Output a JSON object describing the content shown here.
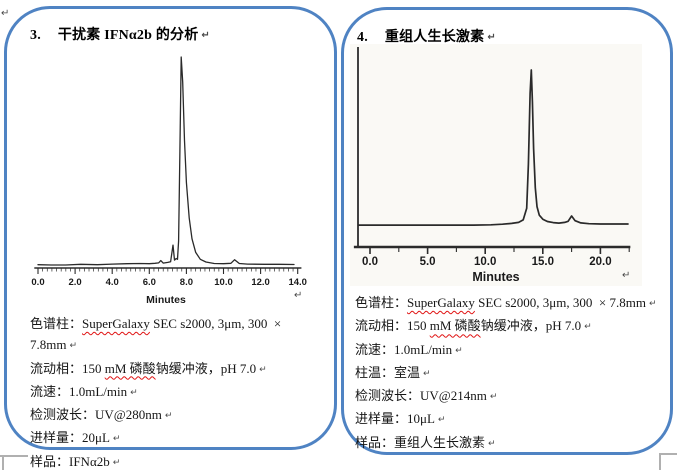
{
  "page": {
    "paragraph_mark": "↵"
  },
  "panels": [
    {
      "number": "3.",
      "title": "干扰素 IFNα2b 的分析",
      "specs": [
        {
          "segments": [
            {
              "t": "色谱柱："
            },
            {
              "t": "SuperGalaxy",
              "sq": true
            },
            {
              "t": " SEC s2000, 3μm, 300  × 7.8mm"
            }
          ]
        },
        {
          "segments": [
            {
              "t": "流动相：150 "
            },
            {
              "t": "mM 磷酸",
              "sq": true
            },
            {
              "t": "钠缓冲液，pH 7.0"
            }
          ]
        },
        {
          "segments": [
            {
              "t": "流速：1.0mL/min"
            }
          ]
        },
        {
          "segments": [
            {
              "t": "检测波长：UV@280nm"
            }
          ]
        },
        {
          "segments": [
            {
              "t": "进样量：20μL"
            }
          ]
        },
        {
          "segments": [
            {
              "t": "样品：IFNα2b"
            }
          ]
        }
      ]
    },
    {
      "number": "4.",
      "title": "重组人生长激素",
      "specs": [
        {
          "segments": [
            {
              "t": "色谱柱："
            },
            {
              "t": "SuperGalaxy",
              "sq": true
            },
            {
              "t": " SEC s2000, 3μm, 300  × 7.8mm"
            }
          ]
        },
        {
          "segments": [
            {
              "t": "流动相：150 "
            },
            {
              "t": "mM 磷酸",
              "sq": true
            },
            {
              "t": "钠缓冲液，pH 7.0"
            }
          ]
        },
        {
          "segments": [
            {
              "t": "流速：1.0mL/min"
            }
          ]
        },
        {
          "segments": [
            {
              "t": "柱温：室温"
            }
          ]
        },
        {
          "segments": [
            {
              "t": "检测波长：UV@214nm"
            }
          ]
        },
        {
          "segments": [
            {
              "t": "进样量：10μL"
            }
          ]
        },
        {
          "segments": [
            {
              "t": "样品：重组人生长激素"
            }
          ]
        }
      ]
    }
  ],
  "chart_data": [
    {
      "type": "line",
      "title": "",
      "xlabel": "Minutes",
      "ylabel": "",
      "xlim": [
        0,
        14
      ],
      "ylim": [
        0,
        100
      ],
      "grid": false,
      "legend": false,
      "x_tick_values": [
        0,
        2,
        4,
        6,
        8,
        10,
        12,
        14
      ],
      "x_tick_labels": [
        "0.0",
        "2.0",
        "4.0",
        "6.0",
        "8.0",
        "10.0",
        "12.0",
        "14.0"
      ],
      "x_minor_step": 0.25,
      "peaks": [
        {
          "x": 6.6,
          "rel_height": 2.5
        },
        {
          "x": 7.3,
          "rel_height": 10
        },
        {
          "x": 7.7,
          "rel_height": 100
        },
        {
          "x": 10.6,
          "rel_height": 3
        }
      ],
      "series": [
        {
          "name": "UV@280nm signal",
          "points": [
            [
              0,
              0.6
            ],
            [
              0.7,
              0.5
            ],
            [
              1.5,
              0.5
            ],
            [
              2.3,
              0.8
            ],
            [
              3.2,
              0.6
            ],
            [
              4.0,
              0.9
            ],
            [
              4.8,
              1.1
            ],
            [
              5.5,
              1.2
            ],
            [
              6.0,
              1.1
            ],
            [
              6.3,
              1.3
            ],
            [
              6.5,
              1.5
            ],
            [
              6.62,
              2.6
            ],
            [
              6.75,
              1.4
            ],
            [
              7.0,
              1.7
            ],
            [
              7.15,
              2.0
            ],
            [
              7.28,
              10
            ],
            [
              7.36,
              2.8
            ],
            [
              7.45,
              3.6
            ],
            [
              7.52,
              3.2
            ],
            [
              7.58,
              12
            ],
            [
              7.65,
              55
            ],
            [
              7.72,
              100
            ],
            [
              7.8,
              88
            ],
            [
              7.9,
              60
            ],
            [
              8.0,
              40
            ],
            [
              8.15,
              23
            ],
            [
              8.3,
              13
            ],
            [
              8.5,
              6.5
            ],
            [
              8.75,
              3.2
            ],
            [
              9.05,
              1.9
            ],
            [
              9.5,
              1.2
            ],
            [
              10.0,
              1.1
            ],
            [
              10.4,
              1.3
            ],
            [
              10.6,
              3.0
            ],
            [
              10.85,
              1.2
            ],
            [
              11.3,
              0.9
            ],
            [
              12.2,
              0.8
            ],
            [
              13.0,
              0.8
            ],
            [
              13.8,
              0.7
            ]
          ]
        }
      ]
    },
    {
      "type": "line",
      "title": "",
      "xlabel": "Minutes",
      "ylabel": "",
      "xlim": [
        -1.5,
        22.5
      ],
      "ylim": [
        0,
        100
      ],
      "grid": false,
      "legend": false,
      "x_tick_values": [
        0,
        5,
        10,
        15,
        20
      ],
      "x_tick_labels": [
        "0.0",
        "5.0",
        "10.0",
        "15.0",
        "20.0"
      ],
      "x_minor_step": 2.5,
      "peaks": [
        {
          "x": 14.0,
          "rel_height": 100
        },
        {
          "x": 17.5,
          "rel_height": 7
        }
      ],
      "series": [
        {
          "name": "UV@214nm signal",
          "points": [
            [
              -1.0,
              1.2
            ],
            [
              0,
              1.2
            ],
            [
              3,
              1.2
            ],
            [
              6,
              1.2
            ],
            [
              9,
              1.2
            ],
            [
              10.5,
              1.4
            ],
            [
              11.5,
              1.8
            ],
            [
              12.3,
              2.3
            ],
            [
              12.9,
              2.9
            ],
            [
              13.3,
              4.5
            ],
            [
              13.6,
              12
            ],
            [
              13.75,
              40
            ],
            [
              13.9,
              85
            ],
            [
              14.0,
              100
            ],
            [
              14.1,
              80
            ],
            [
              14.2,
              50
            ],
            [
              14.35,
              25
            ],
            [
              14.5,
              13
            ],
            [
              14.7,
              7.5
            ],
            [
              15.0,
              5
            ],
            [
              15.4,
              3.5
            ],
            [
              15.9,
              2.8
            ],
            [
              16.4,
              2.5
            ],
            [
              16.9,
              2.9
            ],
            [
              17.2,
              3.6
            ],
            [
              17.5,
              7
            ],
            [
              17.8,
              4
            ],
            [
              18.3,
              2.6
            ],
            [
              19.0,
              2.1
            ],
            [
              20.0,
              1.9
            ],
            [
              21.2,
              1.9
            ],
            [
              22.4,
              1.9
            ]
          ]
        }
      ]
    }
  ]
}
